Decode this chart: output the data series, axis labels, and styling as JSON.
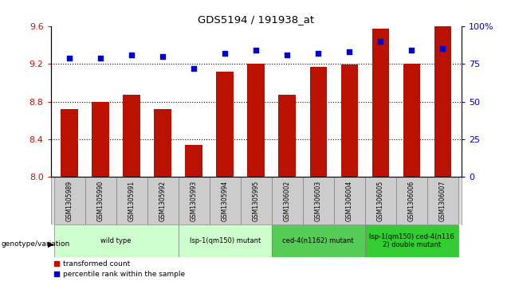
{
  "title": "GDS5194 / 191938_at",
  "samples": [
    "GSM1305989",
    "GSM1305990",
    "GSM1305991",
    "GSM1305992",
    "GSM1305993",
    "GSM1305994",
    "GSM1305995",
    "GSM1306002",
    "GSM1306003",
    "GSM1306004",
    "GSM1306005",
    "GSM1306006",
    "GSM1306007"
  ],
  "bar_values": [
    8.72,
    8.8,
    8.87,
    8.72,
    8.34,
    9.12,
    9.2,
    8.87,
    9.17,
    9.19,
    9.57,
    9.2,
    9.6
  ],
  "dot_values": [
    79,
    79,
    81,
    80,
    72,
    82,
    84,
    81,
    82,
    83,
    90,
    84,
    85
  ],
  "ylim_left": [
    8.0,
    9.6
  ],
  "ylim_right": [
    0,
    100
  ],
  "yticks_left": [
    8.0,
    8.4,
    8.8,
    9.2,
    9.6
  ],
  "yticks_right": [
    0,
    25,
    50,
    75,
    100
  ],
  "bar_color": "#bb1100",
  "dot_color": "#0000cc",
  "bar_width": 0.55,
  "groups": [
    {
      "label": "wild type",
      "start": 0,
      "end": 3,
      "color": "#ccffcc"
    },
    {
      "label": "lsp-1(qm150) mutant",
      "start": 4,
      "end": 6,
      "color": "#ccffcc"
    },
    {
      "label": "ced-4(n1162) mutant",
      "start": 7,
      "end": 9,
      "color": "#55cc55"
    },
    {
      "label": "lsp-1(qm150) ced-4(n116\n2) double mutant",
      "start": 10,
      "end": 12,
      "color": "#33cc33"
    }
  ],
  "sample_box_color": "#cccccc",
  "legend_bar_label": "transformed count",
  "legend_dot_label": "percentile rank within the sample",
  "genotype_label": "genotype/variation",
  "tick_color_left": "#cc1100",
  "tick_color_right": "#0000cc"
}
